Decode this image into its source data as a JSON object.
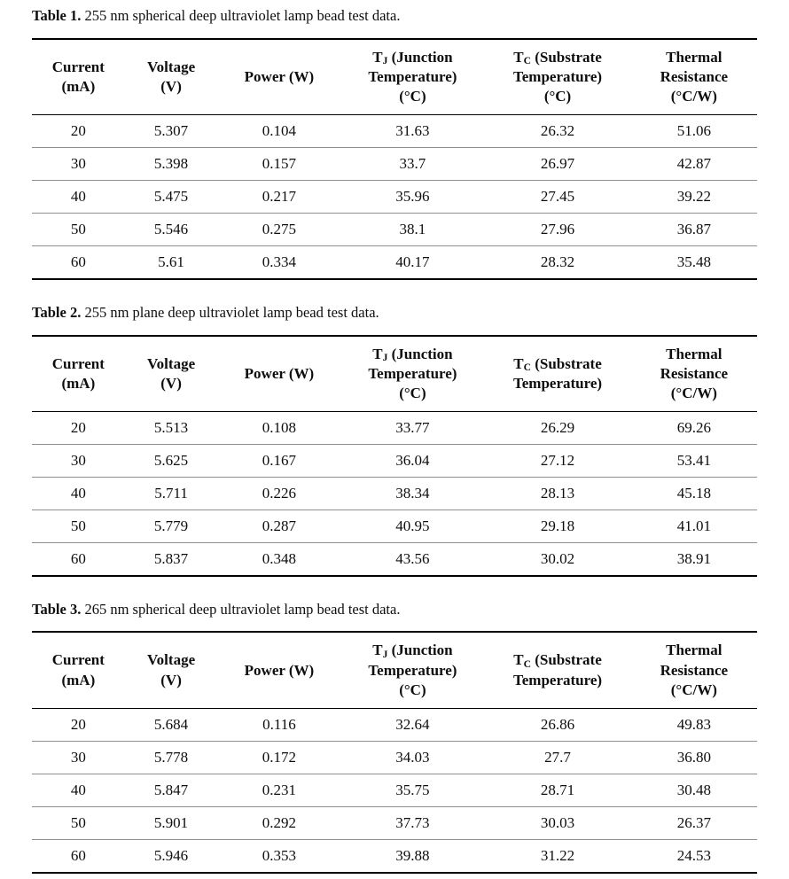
{
  "colors": {
    "background": "#ffffff",
    "text": "#0e0e0e",
    "heavy_rule": "#000000",
    "row_divider": "#8f8f8f"
  },
  "tables": [
    {
      "caption_label": "Table 1.",
      "caption_text": "255 nm spherical deep ultraviolet lamp bead test data.",
      "columns": [
        {
          "slug": "current",
          "lines": [
            "Current",
            "(mA)"
          ]
        },
        {
          "slug": "voltage",
          "lines": [
            "Voltage",
            "(V)"
          ]
        },
        {
          "slug": "power",
          "lines": [
            "Power (W)"
          ]
        },
        {
          "slug": "junction-temperature",
          "base": "T",
          "sub": "J",
          "after": " (Junction",
          "lines": [
            "Temperature)",
            "(°C)"
          ]
        },
        {
          "slug": "substrate-temperature",
          "base": "T",
          "sub": "C",
          "after": " (Substrate",
          "lines": [
            "Temperature)",
            "(°C)"
          ]
        },
        {
          "slug": "thermal-resistance",
          "lines": [
            "Thermal",
            "Resistance",
            "(°C/W)"
          ]
        }
      ],
      "rows": [
        [
          "20",
          "5.307",
          "0.104",
          "31.63",
          "26.32",
          "51.06"
        ],
        [
          "30",
          "5.398",
          "0.157",
          "33.7",
          "26.97",
          "42.87"
        ],
        [
          "40",
          "5.475",
          "0.217",
          "35.96",
          "27.45",
          "39.22"
        ],
        [
          "50",
          "5.546",
          "0.275",
          "38.1",
          "27.96",
          "36.87"
        ],
        [
          "60",
          "5.61",
          "0.334",
          "40.17",
          "28.32",
          "35.48"
        ]
      ]
    },
    {
      "caption_label": "Table 2.",
      "caption_text": "255 nm plane deep ultraviolet lamp bead test data.",
      "columns": [
        {
          "slug": "current",
          "lines": [
            "Current",
            "(mA)"
          ]
        },
        {
          "slug": "voltage",
          "lines": [
            "Voltage",
            "(V)"
          ]
        },
        {
          "slug": "power",
          "lines": [
            "Power (W)"
          ]
        },
        {
          "slug": "junction-temperature",
          "base": "T",
          "sub": "J",
          "after": " (Junction",
          "lines": [
            "Temperature)",
            "(°C)"
          ]
        },
        {
          "slug": "substrate-temperature",
          "base": "T",
          "sub": "C",
          "after": " (Substrate",
          "lines": [
            "Temperature)"
          ]
        },
        {
          "slug": "thermal-resistance",
          "lines": [
            "Thermal",
            "Resistance",
            "(°C/W)"
          ]
        }
      ],
      "rows": [
        [
          "20",
          "5.513",
          "0.108",
          "33.77",
          "26.29",
          "69.26"
        ],
        [
          "30",
          "5.625",
          "0.167",
          "36.04",
          "27.12",
          "53.41"
        ],
        [
          "40",
          "5.711",
          "0.226",
          "38.34",
          "28.13",
          "45.18"
        ],
        [
          "50",
          "5.779",
          "0.287",
          "40.95",
          "29.18",
          "41.01"
        ],
        [
          "60",
          "5.837",
          "0.348",
          "43.56",
          "30.02",
          "38.91"
        ]
      ]
    },
    {
      "caption_label": "Table 3.",
      "caption_text": "265 nm spherical deep ultraviolet lamp bead test data.",
      "columns": [
        {
          "slug": "current",
          "lines": [
            "Current",
            "(mA)"
          ]
        },
        {
          "slug": "voltage",
          "lines": [
            "Voltage",
            "(V)"
          ]
        },
        {
          "slug": "power",
          "lines": [
            "Power (W)"
          ]
        },
        {
          "slug": "junction-temperature",
          "base": "T",
          "sub": "J",
          "after": " (Junction",
          "lines": [
            "Temperature)",
            "(°C)"
          ]
        },
        {
          "slug": "substrate-temperature",
          "base": "T",
          "sub": "C",
          "after": " (Substrate",
          "lines": [
            "Temperature)"
          ]
        },
        {
          "slug": "thermal-resistance",
          "lines": [
            "Thermal",
            "Resistance",
            "(°C/W)"
          ]
        }
      ],
      "rows": [
        [
          "20",
          "5.684",
          "0.116",
          "32.64",
          "26.86",
          "49.83"
        ],
        [
          "30",
          "5.778",
          "0.172",
          "34.03",
          "27.7",
          "36.80"
        ],
        [
          "40",
          "5.847",
          "0.231",
          "35.75",
          "28.71",
          "30.48"
        ],
        [
          "50",
          "5.901",
          "0.292",
          "37.73",
          "30.03",
          "26.37"
        ],
        [
          "60",
          "5.946",
          "0.353",
          "39.88",
          "31.22",
          "24.53"
        ]
      ]
    }
  ]
}
